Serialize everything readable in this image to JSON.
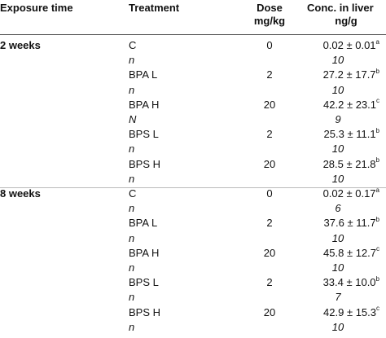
{
  "header": {
    "exposure_time": "Exposure time",
    "treatment": "Treatment",
    "dose_line1": "Dose",
    "dose_line2": "mg/kg",
    "conc_line1": "Conc. in liver",
    "conc_line2": "ng/g"
  },
  "rows": [
    {
      "exposure": "2 weeks",
      "treatment": "C",
      "dose": "0",
      "conc": "0.02 ± 0.01",
      "sup": "a",
      "italic": false
    },
    {
      "exposure": "",
      "treatment": "n",
      "dose": "",
      "conc": "10",
      "sup": "",
      "italic": true
    },
    {
      "exposure": "",
      "treatment": "BPA L",
      "dose": "2",
      "conc": "27.2 ± 17.7",
      "sup": "b",
      "italic": false
    },
    {
      "exposure": "",
      "treatment": "n",
      "dose": "",
      "conc": "10",
      "sup": "",
      "italic": true
    },
    {
      "exposure": "",
      "treatment": "BPA H",
      "dose": "20",
      "conc": "42.2 ± 23.1",
      "sup": "c",
      "italic": false
    },
    {
      "exposure": "",
      "treatment": "N",
      "dose": "",
      "conc": "9",
      "sup": "",
      "italic": true
    },
    {
      "exposure": "",
      "treatment": "BPS L",
      "dose": "2",
      "conc": "25.3 ± 11.1",
      "sup": "b",
      "italic": false
    },
    {
      "exposure": "",
      "treatment": "n",
      "dose": "",
      "conc": "10",
      "sup": "",
      "italic": true
    },
    {
      "exposure": "",
      "treatment": "BPS H",
      "dose": "20",
      "conc": "28.5 ± 21.8",
      "sup": "b",
      "italic": false
    },
    {
      "exposure": "",
      "treatment": "n",
      "dose": "",
      "conc": "10",
      "sup": "",
      "italic": true
    },
    {
      "exposure": "8 weeks",
      "treatment": "C",
      "dose": "0",
      "conc": "0.02 ± 0.17",
      "sup": "a",
      "italic": false
    },
    {
      "exposure": "",
      "treatment": "n",
      "dose": "",
      "conc": "6",
      "sup": "",
      "italic": true
    },
    {
      "exposure": "",
      "treatment": "BPA L",
      "dose": "2",
      "conc": "37.6 ± 11.7",
      "sup": "b",
      "italic": false
    },
    {
      "exposure": "",
      "treatment": "n",
      "dose": "",
      "conc": "10",
      "sup": "",
      "italic": true
    },
    {
      "exposure": "",
      "treatment": "BPA H",
      "dose": "20",
      "conc": "45.8 ± 12.7",
      "sup": "c",
      "italic": false
    },
    {
      "exposure": "",
      "treatment": "n",
      "dose": "",
      "conc": "10",
      "sup": "",
      "italic": true
    },
    {
      "exposure": "",
      "treatment": "BPS L",
      "dose": "2",
      "conc": "33.4 ± 10.0",
      "sup": "b",
      "italic": false
    },
    {
      "exposure": "",
      "treatment": "n",
      "dose": "",
      "conc": "7",
      "sup": "",
      "italic": true
    },
    {
      "exposure": "",
      "treatment": "BPS H",
      "dose": "20",
      "conc": "42.9 ± 15.3",
      "sup": "c",
      "italic": false
    },
    {
      "exposure": "",
      "treatment": "n",
      "dose": "",
      "conc": "10",
      "sup": "",
      "italic": true
    }
  ]
}
